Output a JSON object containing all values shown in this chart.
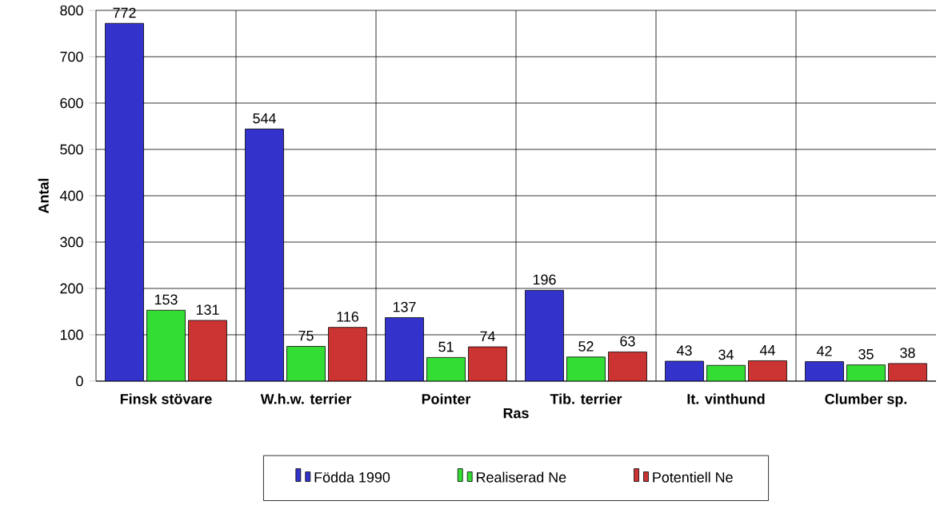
{
  "chart_data": {
    "type": "bar",
    "xlabel": "Ras",
    "ylabel": "Antal",
    "categories": [
      "Finsk stövare",
      "W.h.w. terrier",
      "Pointer",
      "Tib. terrier",
      "It. vinthund",
      "Clumber sp."
    ],
    "series": [
      {
        "name": "Födda 1990",
        "color": "#3333cc",
        "values": [
          772,
          544,
          137,
          196,
          43,
          42
        ]
      },
      {
        "name": "Realiserad Ne",
        "color": "#33dd33",
        "values": [
          153,
          75,
          51,
          52,
          34,
          35
        ]
      },
      {
        "name": "Potentiell Ne",
        "color": "#cc3333",
        "values": [
          131,
          116,
          74,
          63,
          44,
          38
        ]
      }
    ],
    "ylim": [
      0,
      800
    ],
    "yticks": [
      0,
      100,
      200,
      300,
      400,
      500,
      600,
      700,
      800
    ],
    "grid": true,
    "legend": "bottom",
    "data_labels": true
  }
}
